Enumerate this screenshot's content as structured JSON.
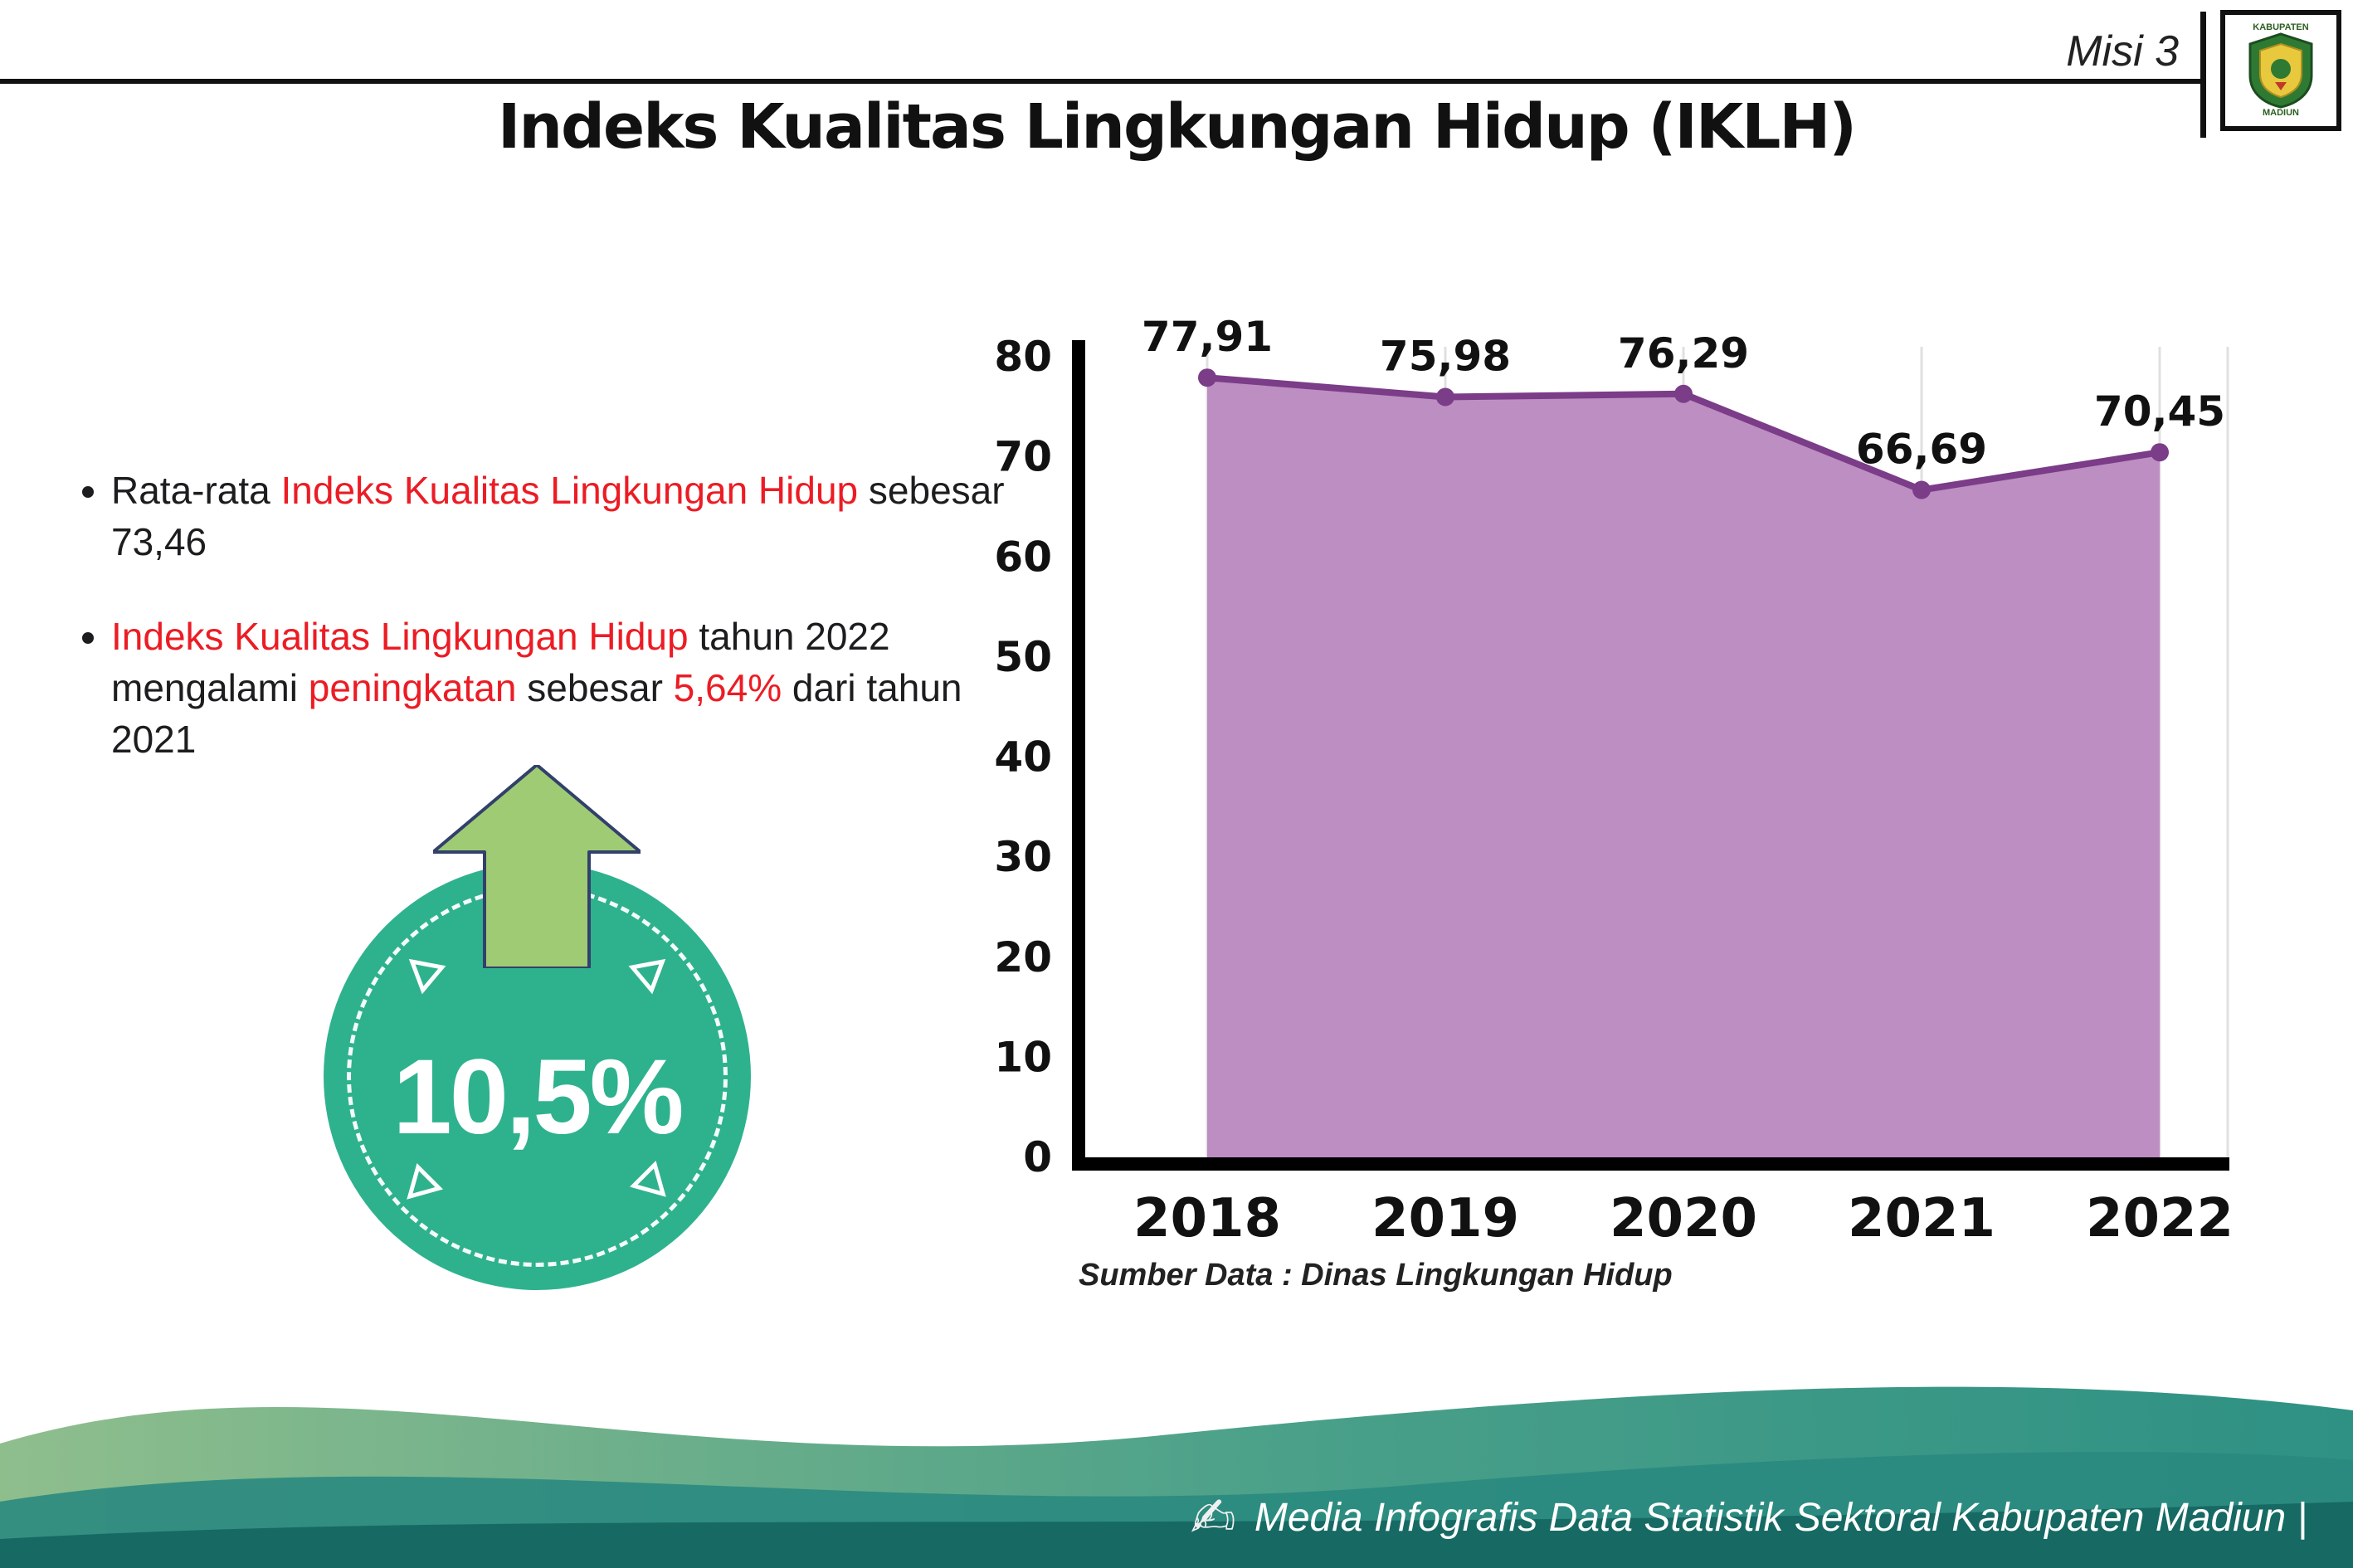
{
  "header": {
    "misi_label": "Misi 3",
    "title": "Indeks Kualitas Lingkungan Hidup (IKLH)"
  },
  "logo": {
    "top_text": "KABUPATEN",
    "bottom_text": "MADIUN"
  },
  "bullets": {
    "b1": {
      "seg1": "Rata-rata ",
      "seg2": "Indeks Kualitas Lingkungan Hidup",
      "seg3": " sebesar 73,46"
    },
    "b2": {
      "seg1": "Indeks Kualitas Lingkungan Hidup",
      "seg2": " tahun 2022 mengalami ",
      "seg3": "peningkatan",
      "seg4": " sebesar ",
      "seg5": "5,64%",
      "seg6": " dari tahun 2021"
    }
  },
  "badge": {
    "value": "10,5%"
  },
  "chart_data": {
    "type": "area",
    "categories": [
      "2018",
      "2019",
      "2020",
      "2021",
      "2022"
    ],
    "values": [
      77.91,
      75.98,
      76.29,
      66.69,
      70.45
    ],
    "point_labels": [
      "77,91",
      "75,98",
      "76,29",
      "66,69",
      "70,45"
    ],
    "ylim": [
      0,
      80
    ],
    "ytick_step": 10,
    "grid": "vertical-light",
    "legend": "none",
    "fill_color": "#bd8ec2",
    "line_color": "#7b3c88",
    "axis_color": "#000000"
  },
  "source_note": "Sumber Data : Dinas Lingkungan Hidup",
  "footer": {
    "credit": "Media Infografis Data Statistik Sektoral Kabupaten Madiun |"
  }
}
